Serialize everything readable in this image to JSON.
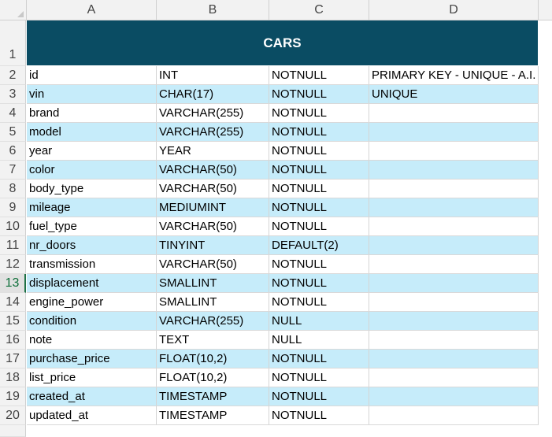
{
  "columns": [
    "A",
    "B",
    "C",
    "D"
  ],
  "title": "CARS",
  "row_numbers": [
    "1",
    "2",
    "3",
    "4",
    "5",
    "6",
    "7",
    "8",
    "9",
    "10",
    "11",
    "12",
    "13",
    "14",
    "15",
    "16",
    "17",
    "18",
    "19",
    "20"
  ],
  "selected_row": "13",
  "rows": [
    {
      "a": "id",
      "b": "INT",
      "c": "NOTNULL",
      "d": "PRIMARY KEY - UNIQUE - A.I."
    },
    {
      "a": "vin",
      "b": "CHAR(17)",
      "c": "NOTNULL",
      "d": "UNIQUE"
    },
    {
      "a": "brand",
      "b": "VARCHAR(255)",
      "c": "NOTNULL",
      "d": ""
    },
    {
      "a": "model",
      "b": "VARCHAR(255)",
      "c": "NOTNULL",
      "d": ""
    },
    {
      "a": "year",
      "b": "YEAR",
      "c": "NOTNULL",
      "d": ""
    },
    {
      "a": "color",
      "b": "VARCHAR(50)",
      "c": "NOTNULL",
      "d": ""
    },
    {
      "a": "body_type",
      "b": "VARCHAR(50)",
      "c": "NOTNULL",
      "d": ""
    },
    {
      "a": "mileage",
      "b": "MEDIUMINT",
      "c": "NOTNULL",
      "d": ""
    },
    {
      "a": "fuel_type",
      "b": "VARCHAR(50)",
      "c": "NOTNULL",
      "d": ""
    },
    {
      "a": "nr_doors",
      "b": "TINYINT",
      "c": "DEFAULT(2)",
      "d": ""
    },
    {
      "a": "transmission",
      "b": "VARCHAR(50)",
      "c": "NOTNULL",
      "d": ""
    },
    {
      "a": "displacement",
      "b": "SMALLINT",
      "c": "NOTNULL",
      "d": ""
    },
    {
      "a": "engine_power",
      "b": "SMALLINT",
      "c": "NOTNULL",
      "d": ""
    },
    {
      "a": "condition",
      "b": "VARCHAR(255)",
      "c": "NULL",
      "d": ""
    },
    {
      "a": "note",
      "b": "TEXT",
      "c": "NULL",
      "d": ""
    },
    {
      "a": "purchase_price",
      "b": "FLOAT(10,2)",
      "c": "NOTNULL",
      "d": ""
    },
    {
      "a": "list_price",
      "b": "FLOAT(10,2)",
      "c": "NOTNULL",
      "d": ""
    },
    {
      "a": "created_at",
      "b": "TIMESTAMP",
      "c": "NOTNULL",
      "d": ""
    },
    {
      "a": "updated_at",
      "b": "TIMESTAMP",
      "c": "NOTNULL",
      "d": ""
    }
  ],
  "colors": {
    "title_band": "#0a4c63",
    "alt_row": "#c6ecfa",
    "header_bg": "#f2f2f2",
    "selection_accent": "#1e7145"
  }
}
